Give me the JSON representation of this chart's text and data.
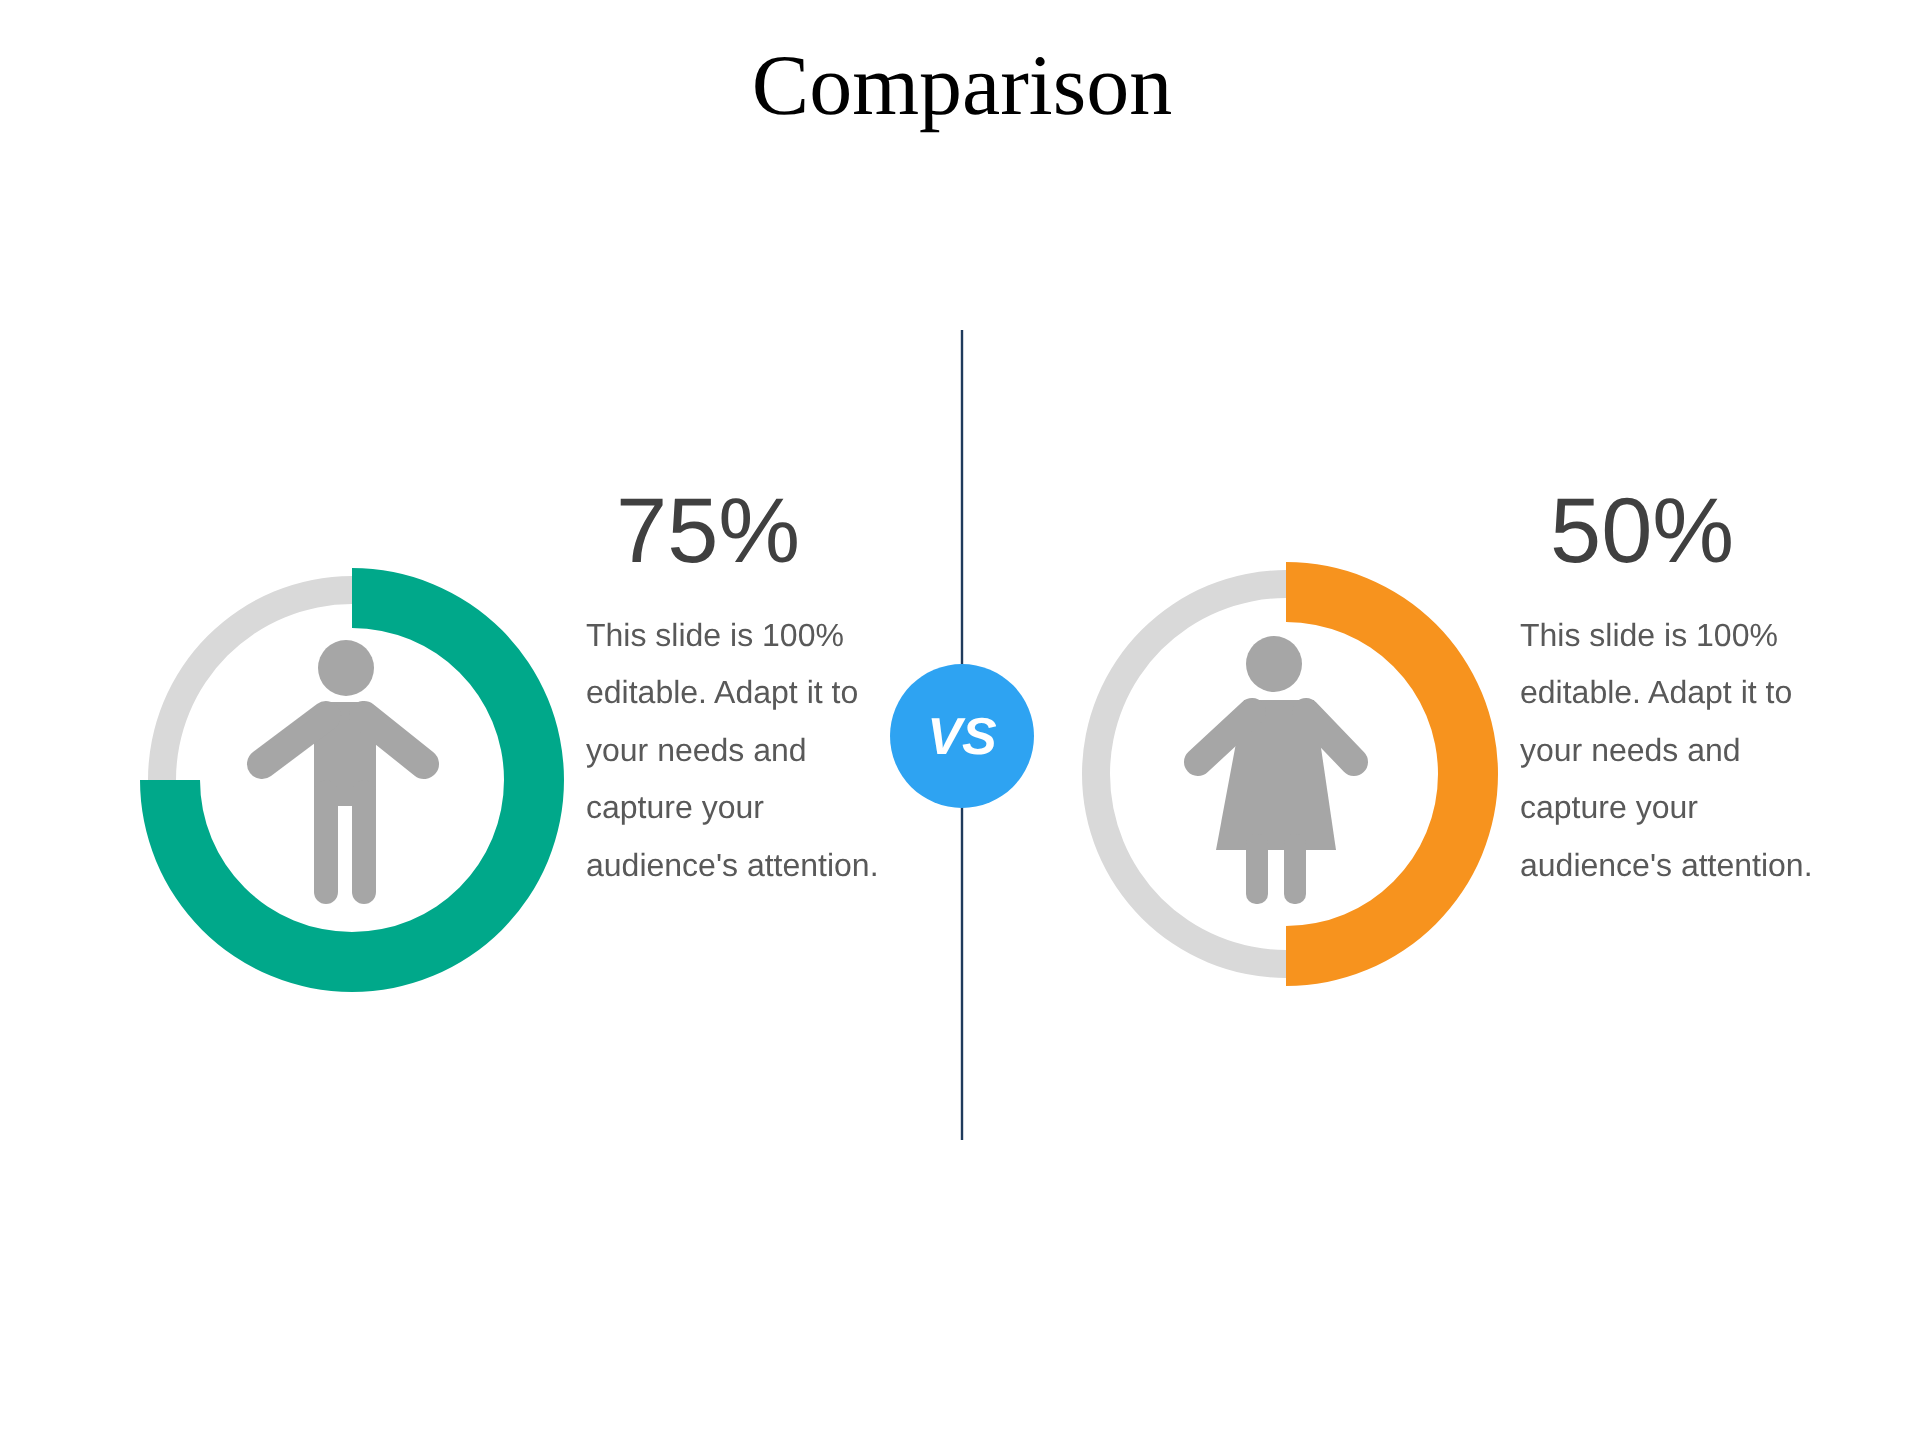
{
  "chart_data": [
    {
      "type": "other",
      "title": "Comparison",
      "annotations": [
        "VS"
      ]
    },
    {
      "type": "donut",
      "categories": [
        null,
        null
      ],
      "values": [
        75,
        25
      ],
      "colors": [
        "#00a88a",
        "#d9d9d9"
      ],
      "value_labels": [
        "75%",
        null
      ],
      "annotations": [
        "This slide is 100% editable. Adapt it to your needs and capture your audience's attention."
      ]
    },
    {
      "type": "donut",
      "categories": [
        null,
        null
      ],
      "values": [
        50,
        50
      ],
      "colors": [
        "#f7931e",
        "#d9d9d9"
      ],
      "value_labels": [
        "50%",
        null
      ],
      "annotations": [
        "This slide is 100% editable. Adapt it to your needs and capture your audience's attention."
      ]
    }
  ]
}
